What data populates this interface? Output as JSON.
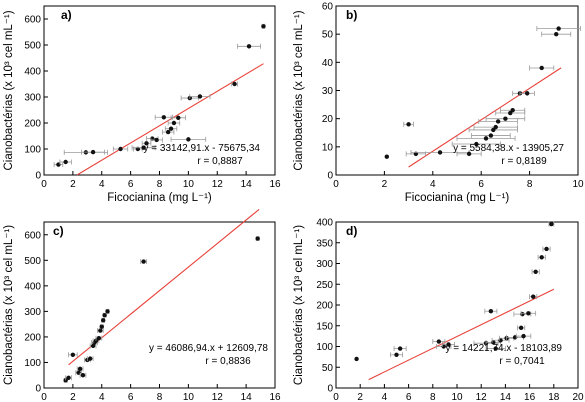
{
  "chart_data": [
    {
      "type": "scatter",
      "panel_label": "a)",
      "xlabel": "Ficocianina (mg L⁻¹)",
      "ylabel": "Cianobactérias (x 10³ cel mL⁻¹)",
      "xlim": [
        0,
        16
      ],
      "ylim": [
        0,
        650
      ],
      "xticks": [
        0,
        2,
        4,
        6,
        8,
        10,
        12,
        14,
        16
      ],
      "yticks": [
        0,
        100,
        200,
        300,
        400,
        500,
        600
      ],
      "equation": "y = 33142,91.x - 75675,34",
      "r_text": "r = 0,8887",
      "regression": {
        "slope": 33.14291,
        "intercept": -75.67534,
        "x_range": [
          2.3,
          15.2
        ]
      },
      "points": [
        {
          "x": 1.0,
          "y": 40
        },
        {
          "x": 1.5,
          "y": 50
        },
        {
          "x": 2.9,
          "y": 87
        },
        {
          "x": 3.4,
          "y": 88
        },
        {
          "x": 5.3,
          "y": 100
        },
        {
          "x": 6.5,
          "y": 100
        },
        {
          "x": 6.9,
          "y": 105
        },
        {
          "x": 7.1,
          "y": 122
        },
        {
          "x": 7.5,
          "y": 140
        },
        {
          "x": 7.8,
          "y": 135
        },
        {
          "x": 8.3,
          "y": 222
        },
        {
          "x": 8.6,
          "y": 165
        },
        {
          "x": 8.8,
          "y": 178
        },
        {
          "x": 9.0,
          "y": 200
        },
        {
          "x": 9.3,
          "y": 220
        },
        {
          "x": 10.0,
          "y": 137
        },
        {
          "x": 10.1,
          "y": 296
        },
        {
          "x": 10.8,
          "y": 302
        },
        {
          "x": 13.2,
          "y": 350
        },
        {
          "x": 14.2,
          "y": 495
        },
        {
          "x": 15.2,
          "y": 572
        }
      ],
      "x_errors": [
        0.3,
        0.4,
        1.5,
        0.8,
        0.5,
        0.3,
        0.8,
        0.3,
        0.4,
        0.4,
        0.6,
        0.4,
        0.4,
        0.4,
        0.5,
        1.2,
        0.6,
        0.7,
        0.2,
        0.8,
        0.1
      ]
    },
    {
      "type": "scatter",
      "panel_label": "b)",
      "xlabel": "Ficocianina (mg L⁻¹)",
      "ylabel": "Cianobactérias (x 10³ cel mL⁻¹)",
      "xlim": [
        0,
        10
      ],
      "ylim": [
        0,
        60
      ],
      "xticks": [
        0,
        2,
        4,
        6,
        8,
        10
      ],
      "yticks": [
        0,
        10,
        20,
        30,
        40,
        50,
        60
      ],
      "equation": "y = 5584,38.x - 13905,27",
      "r_text": "r = 0,8189",
      "regression": {
        "slope": 5.58438,
        "intercept": -13.90527,
        "x_range": [
          3.0,
          9.3
        ]
      },
      "points": [
        {
          "x": 2.1,
          "y": 6.5
        },
        {
          "x": 3.0,
          "y": 18
        },
        {
          "x": 3.3,
          "y": 7.5
        },
        {
          "x": 4.3,
          "y": 8
        },
        {
          "x": 5.5,
          "y": 7.5
        },
        {
          "x": 5.8,
          "y": 11
        },
        {
          "x": 6.2,
          "y": 13
        },
        {
          "x": 6.4,
          "y": 14
        },
        {
          "x": 6.5,
          "y": 16
        },
        {
          "x": 6.6,
          "y": 17
        },
        {
          "x": 6.7,
          "y": 19
        },
        {
          "x": 7.0,
          "y": 20
        },
        {
          "x": 7.2,
          "y": 22
        },
        {
          "x": 7.3,
          "y": 23
        },
        {
          "x": 7.6,
          "y": 29
        },
        {
          "x": 7.9,
          "y": 29
        },
        {
          "x": 8.5,
          "y": 38
        },
        {
          "x": 9.1,
          "y": 50
        },
        {
          "x": 9.2,
          "y": 52
        }
      ],
      "x_errors": [
        0,
        0.2,
        0.4,
        1.2,
        0.5,
        1.0,
        1.2,
        0.8,
        1.0,
        0.9,
        0.8,
        0.8,
        0.6,
        0.5,
        0.3,
        0.3,
        0.5,
        0.6,
        0.9
      ]
    },
    {
      "type": "scatter",
      "panel_label": "c)",
      "xlabel": "Ficocianina (mg L⁻¹)",
      "ylabel": "Cianobactérias (x 10³ cel mL⁻¹)",
      "xlim": [
        0,
        16
      ],
      "ylim": [
        0,
        650
      ],
      "xticks": [
        0,
        2,
        4,
        6,
        8,
        10,
        12,
        14,
        16
      ],
      "yticks": [
        0,
        100,
        200,
        300,
        400,
        500,
        600
      ],
      "equation": "y = 46086,94.x + 12609,78",
      "r_text": "r = 0,8836",
      "regression": {
        "slope": 46.08694,
        "intercept": 12.60978,
        "x_range": [
          1.7,
          14.9
        ]
      },
      "points": [
        {
          "x": 1.5,
          "y": 30
        },
        {
          "x": 1.7,
          "y": 40
        },
        {
          "x": 2.0,
          "y": 130
        },
        {
          "x": 2.4,
          "y": 60
        },
        {
          "x": 2.5,
          "y": 75
        },
        {
          "x": 2.7,
          "y": 50
        },
        {
          "x": 3.0,
          "y": 110
        },
        {
          "x": 3.2,
          "y": 115
        },
        {
          "x": 3.4,
          "y": 165
        },
        {
          "x": 3.5,
          "y": 178
        },
        {
          "x": 3.6,
          "y": 185
        },
        {
          "x": 3.8,
          "y": 195
        },
        {
          "x": 3.9,
          "y": 225
        },
        {
          "x": 4.0,
          "y": 240
        },
        {
          "x": 4.1,
          "y": 265
        },
        {
          "x": 4.2,
          "y": 285
        },
        {
          "x": 4.4,
          "y": 300
        },
        {
          "x": 6.9,
          "y": 495
        },
        {
          "x": 14.8,
          "y": 585
        }
      ],
      "x_errors": [
        0.1,
        0.2,
        0.3,
        0.2,
        0.2,
        0.2,
        0.2,
        0.2,
        0.2,
        0.2,
        0.2,
        0.2,
        0.2,
        0.1,
        0.1,
        0.1,
        0.1,
        0.2,
        0.1
      ]
    },
    {
      "type": "scatter",
      "panel_label": "d)",
      "xlabel": "Ficocianina (mg L⁻¹)",
      "ylabel": "Cianobactérias (x 10³ cel mL⁻¹)",
      "xlim": [
        0,
        20
      ],
      "ylim": [
        0,
        400
      ],
      "xticks": [
        0,
        2,
        4,
        6,
        8,
        10,
        12,
        14,
        16,
        18,
        20
      ],
      "yticks": [
        0,
        50,
        100,
        150,
        200,
        250,
        300,
        350,
        400
      ],
      "equation": "y = 14221,74.x - 18103,89",
      "r_text": "r = 0,7041",
      "regression": {
        "slope": 14.22174,
        "intercept": -18.10389,
        "x_range": [
          2.7,
          18.0
        ]
      },
      "points": [
        {
          "x": 1.7,
          "y": 70
        },
        {
          "x": 5.0,
          "y": 80
        },
        {
          "x": 5.3,
          "y": 95
        },
        {
          "x": 8.5,
          "y": 112
        },
        {
          "x": 8.9,
          "y": 100
        },
        {
          "x": 9.3,
          "y": 105
        },
        {
          "x": 12.4,
          "y": 108
        },
        {
          "x": 12.8,
          "y": 185
        },
        {
          "x": 13.0,
          "y": 110
        },
        {
          "x": 13.2,
          "y": 95
        },
        {
          "x": 13.6,
          "y": 115
        },
        {
          "x": 14.1,
          "y": 120
        },
        {
          "x": 14.8,
          "y": 122
        },
        {
          "x": 15.3,
          "y": 145
        },
        {
          "x": 15.4,
          "y": 178
        },
        {
          "x": 15.5,
          "y": 125
        },
        {
          "x": 15.9,
          "y": 180
        },
        {
          "x": 16.3,
          "y": 220
        },
        {
          "x": 16.5,
          "y": 280
        },
        {
          "x": 17.0,
          "y": 315
        },
        {
          "x": 17.4,
          "y": 335
        },
        {
          "x": 17.8,
          "y": 395
        }
      ],
      "x_errors": [
        0,
        0.5,
        0.5,
        0.5,
        0.6,
        0.5,
        1.0,
        0.5,
        0.6,
        0.8,
        0.7,
        0.6,
        0.7,
        0.3,
        0.7,
        0.6,
        0.6,
        0.3,
        0.3,
        0.3,
        0.3,
        0.2
      ]
    }
  ],
  "colors": {
    "points": "#111111",
    "error_bars": "#9a9a9a",
    "regression_line": "#e8423a",
    "axes": "#000000"
  }
}
